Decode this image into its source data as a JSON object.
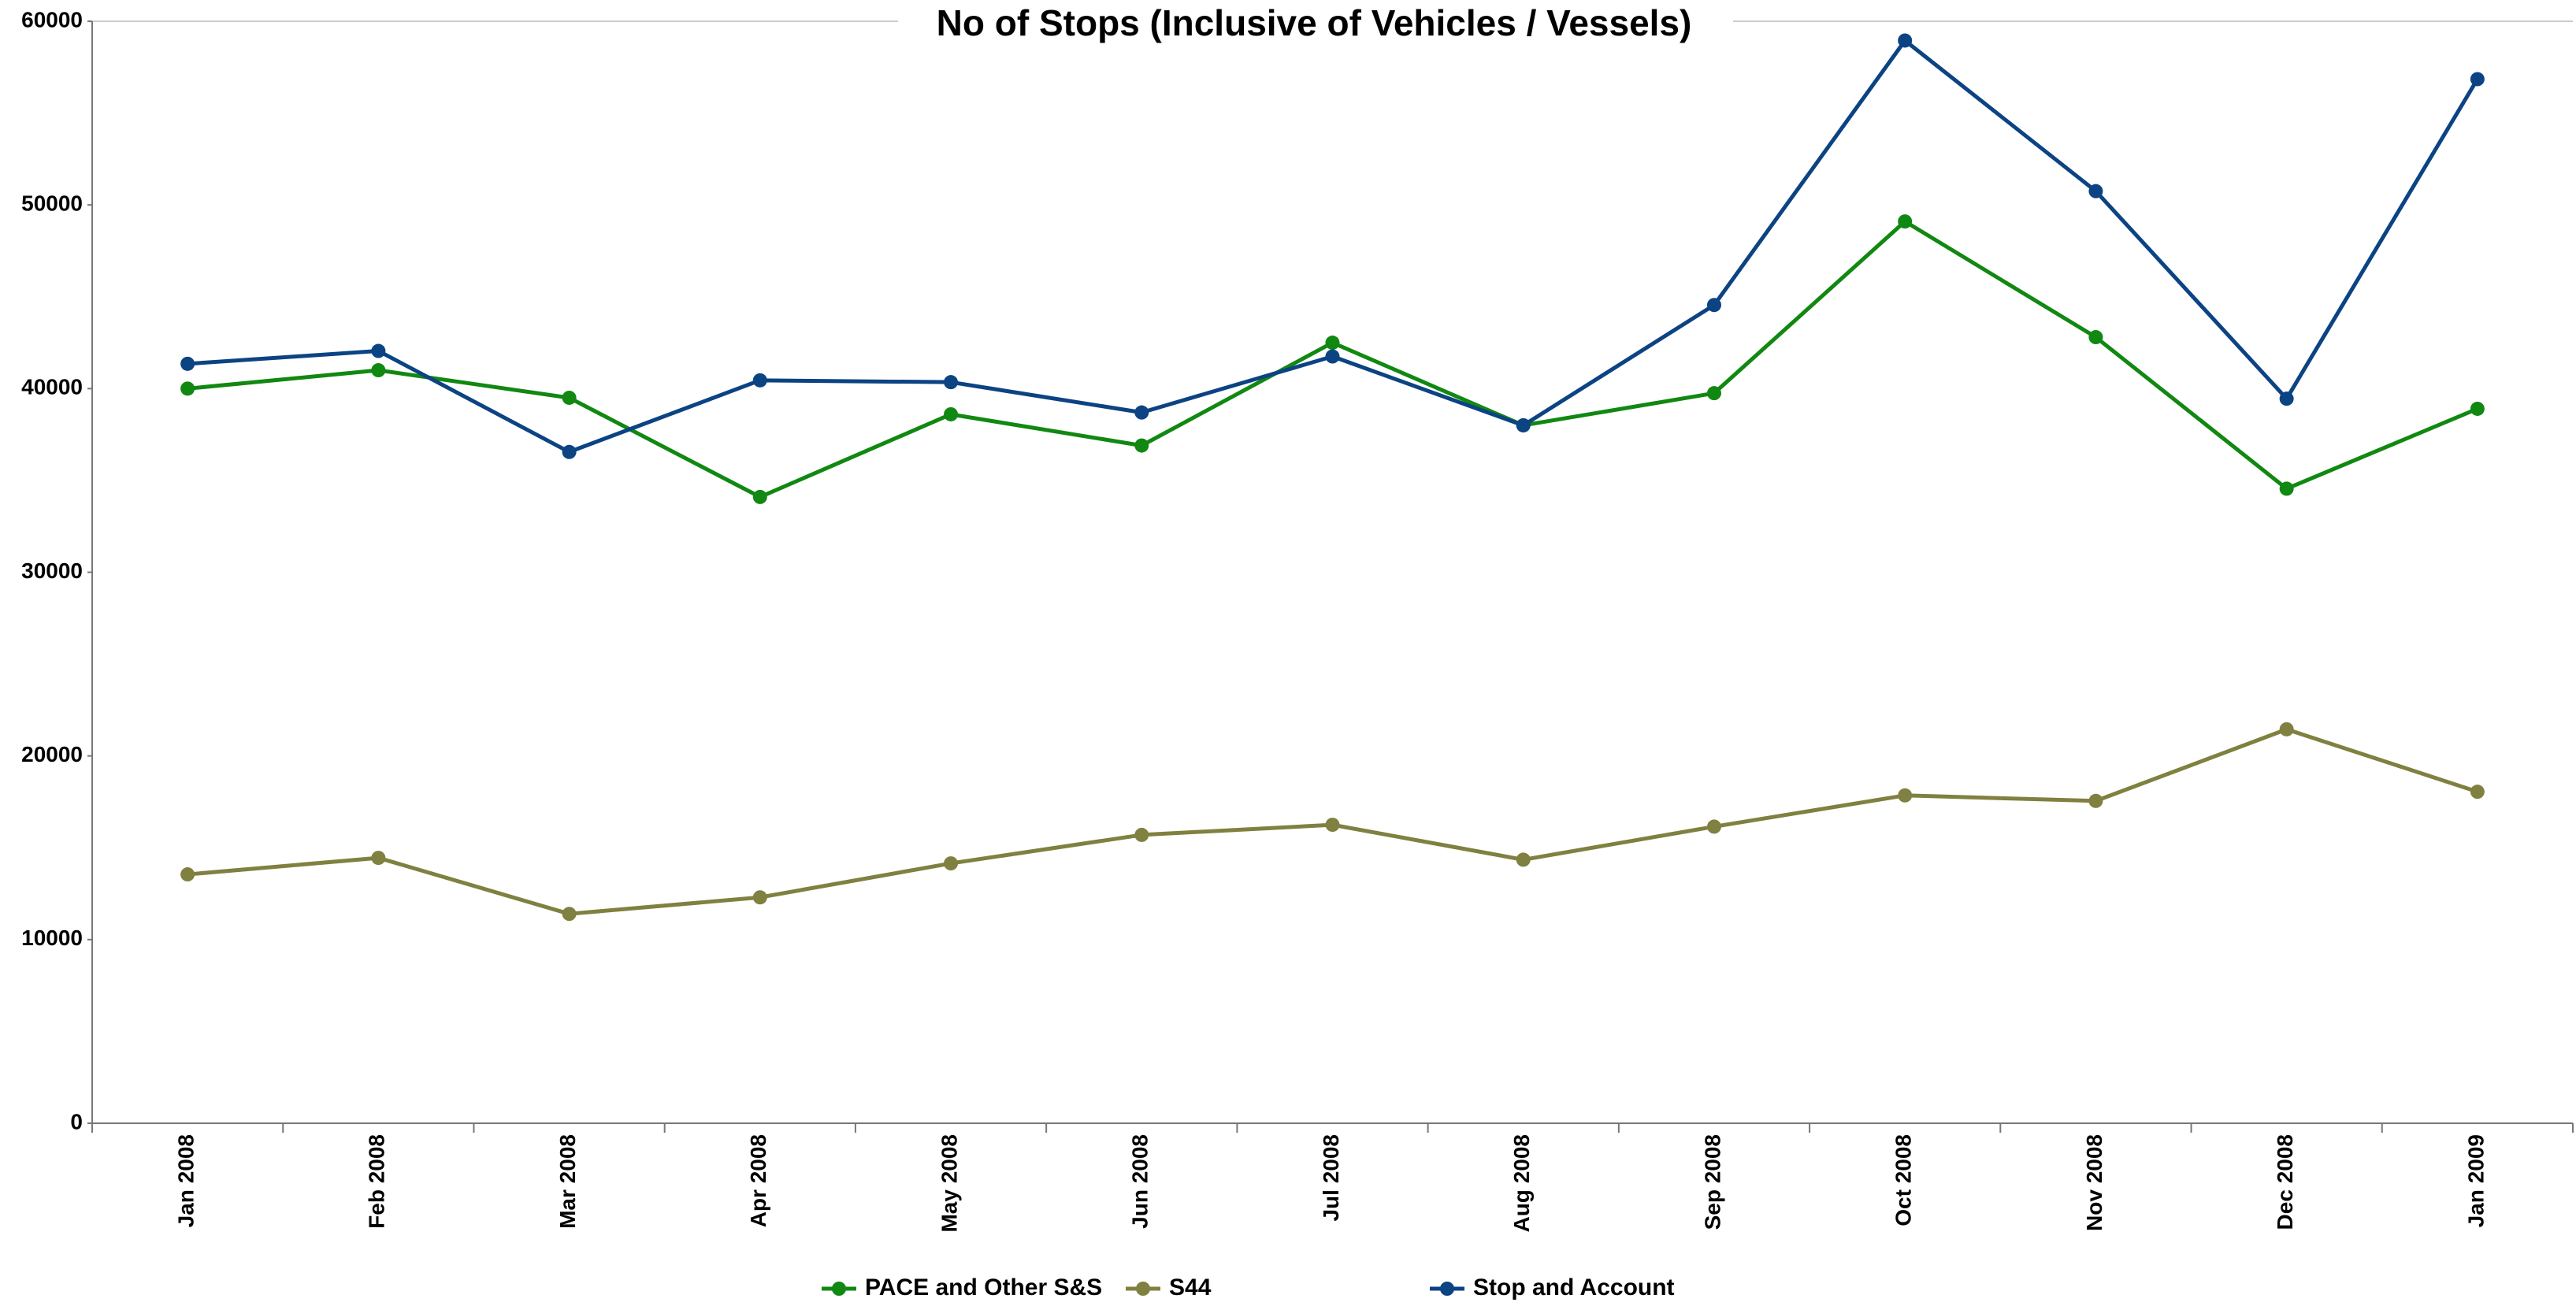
{
  "chart_data": {
    "type": "line",
    "title": "No of Stops (Inclusive of Vehicles / Vessels)",
    "categories": [
      "Jan 2008",
      "Feb 2008",
      "Mar 2008",
      "Apr 2008",
      "May 2008",
      "Jun 2008",
      "Jul 2008",
      "Aug 2008",
      "Sep 2008",
      "Oct 2008",
      "Nov 2008",
      "Dec 2008",
      "Jan 2009"
    ],
    "series": [
      {
        "name": "PACE and Other S&S",
        "color": "#118811",
        "values": [
          40000,
          41000,
          39500,
          34100,
          38600,
          36900,
          42500,
          38000,
          39750,
          49100,
          42800,
          34550,
          38900
        ]
      },
      {
        "name": "S44",
        "color": "#808040",
        "values": [
          13550,
          14450,
          11400,
          12300,
          14150,
          15700,
          16250,
          14350,
          16150,
          17850,
          17550,
          21450,
          18050
        ]
      },
      {
        "name": "Stop and Account",
        "color": "#0b4383",
        "values": [
          41350,
          42050,
          36550,
          40450,
          40350,
          38700,
          41750,
          38000,
          44550,
          58950,
          50750,
          39450,
          56850
        ]
      }
    ],
    "ylim": [
      0,
      60000
    ],
    "yticks": [
      0,
      10000,
      20000,
      30000,
      40000,
      50000,
      60000
    ]
  }
}
